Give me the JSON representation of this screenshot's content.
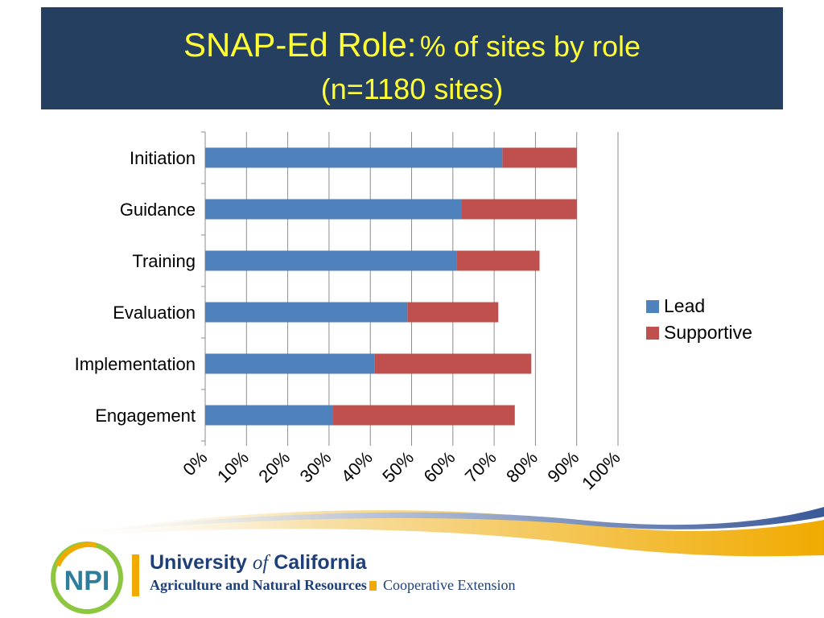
{
  "title": {
    "main": "SNAP-Ed Role:",
    "sub": "% of sites by role",
    "line2": "(n=1180 sites)"
  },
  "colors": {
    "banner": "#243f60",
    "title_text": "#ffff33",
    "lead": "#4f81bd",
    "supportive": "#c0504d",
    "brand_gold": "#f1ab00",
    "brand_blue": "#1e3f78"
  },
  "chart_data": {
    "type": "bar",
    "orientation": "horizontal",
    "stacked": true,
    "categories": [
      "Initiation",
      "Guidance",
      "Training",
      "Evaluation",
      "Implementation",
      "Engagement"
    ],
    "series": [
      {
        "name": "Lead",
        "values": [
          72,
          62,
          61,
          49,
          41,
          31
        ]
      },
      {
        "name": "Supportive",
        "values": [
          18,
          28,
          20,
          22,
          38,
          44
        ]
      }
    ],
    "xlim": [
      0,
      100
    ],
    "xticks": [
      "0%",
      "10%",
      "20%",
      "30%",
      "40%",
      "50%",
      "60%",
      "70%",
      "80%",
      "90%",
      "100%"
    ],
    "grid": "vertical",
    "legend": "right"
  },
  "footer": {
    "logo_text": "NPI",
    "uc_name_part1": "University",
    "uc_name_of": "of",
    "uc_name_part2": "California",
    "uc_division": "Agriculture and Natural Resources",
    "extension": "Cooperative Extension"
  }
}
